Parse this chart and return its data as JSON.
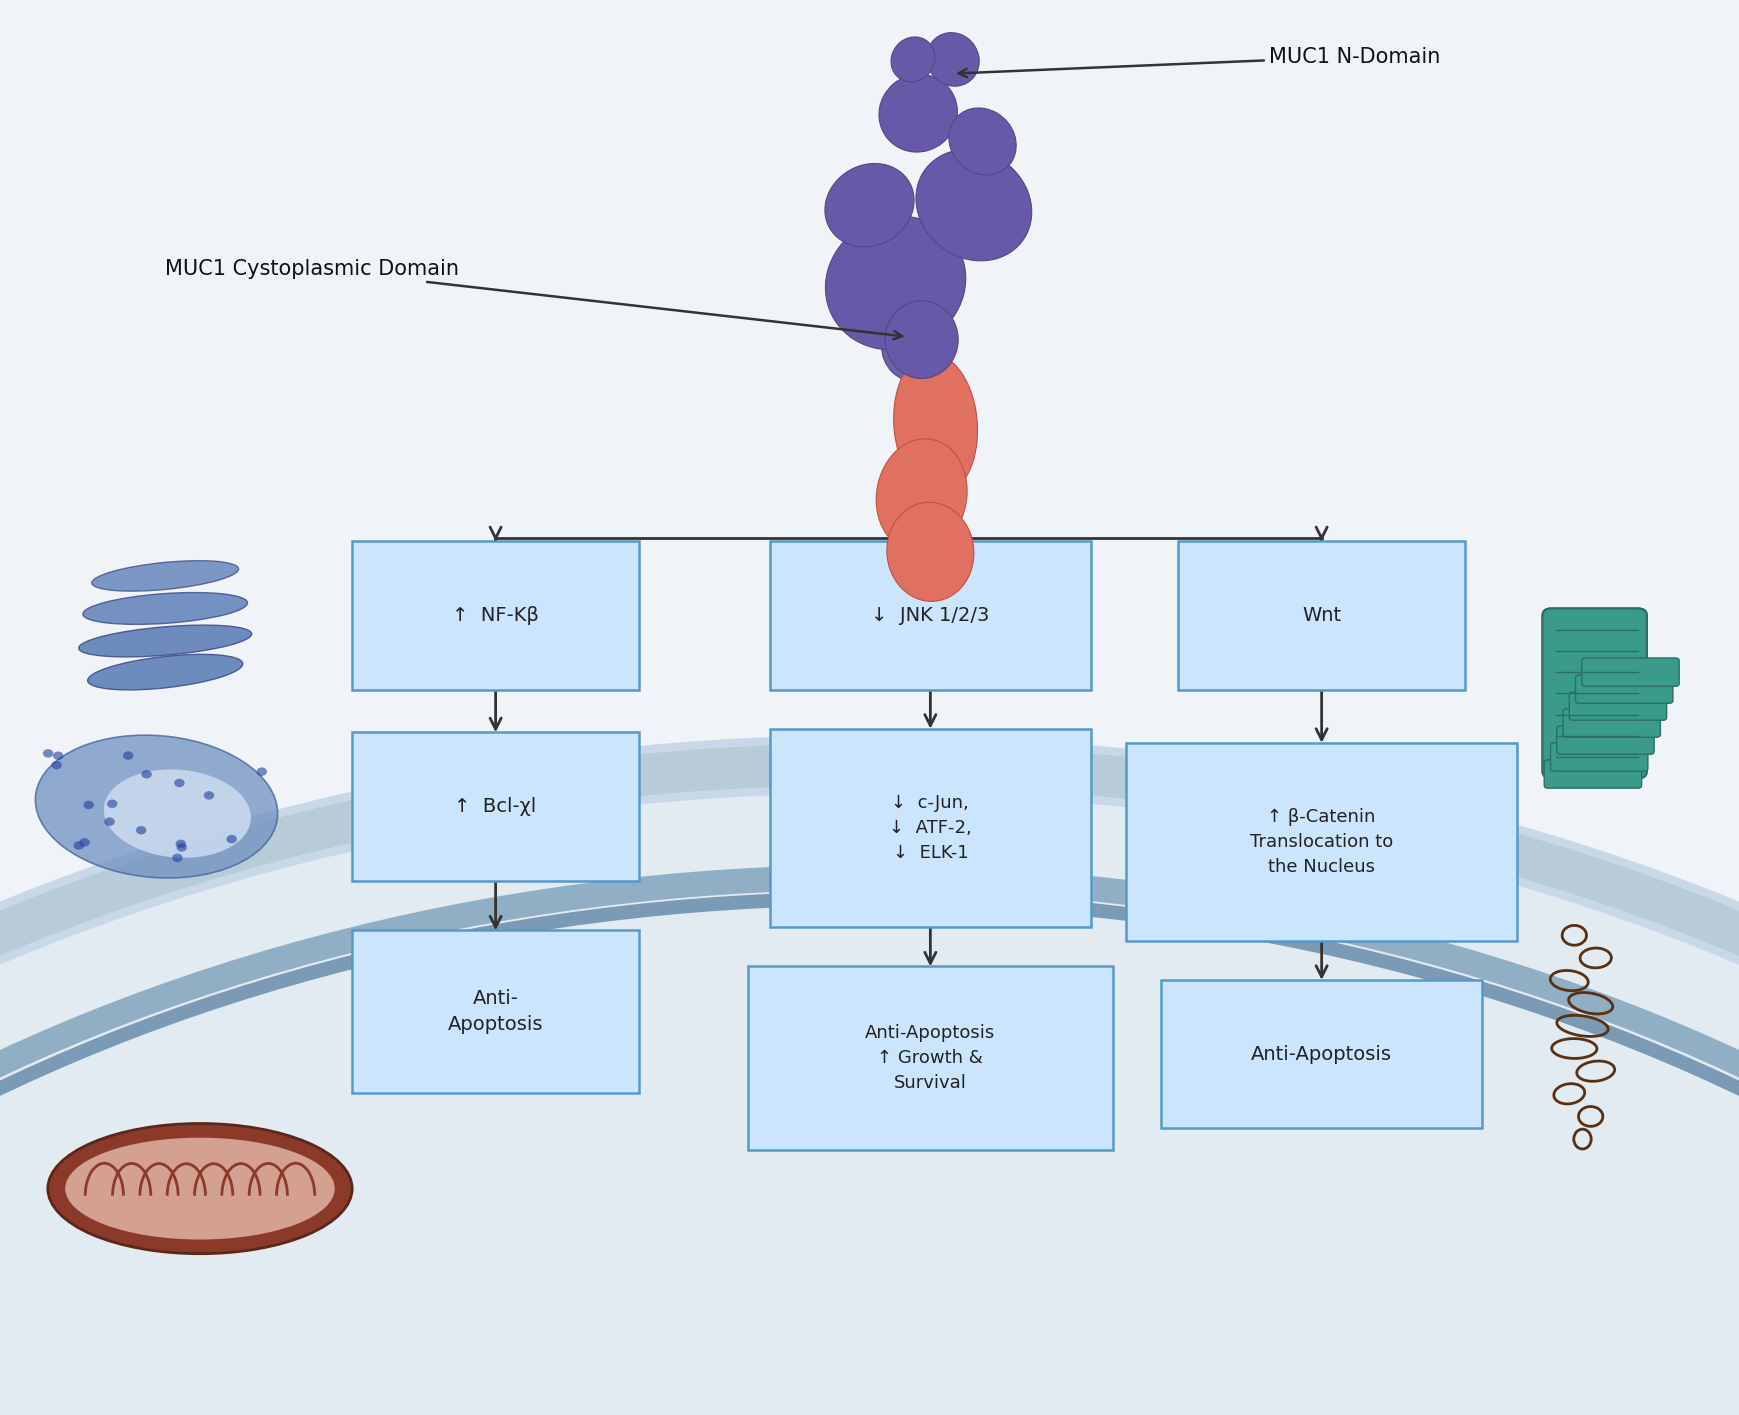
{
  "figsize": [
    17.39,
    14.15
  ],
  "dpi": 100,
  "bg_color": "#f0f4f8",
  "cell_bg": "#e2eaf2",
  "box_fill": "#cce5ff",
  "box_edge": "#5599cc",
  "box_text_color": "#222222",
  "arrow_color": "#333333",
  "label_muc1_n": "MUC1 N-Domain",
  "label_muc1_c": "MUC1 Cystoplasmic Domain",
  "box_params": {
    "nfkb": [
      0.285,
      0.565,
      0.155,
      0.095
    ],
    "bcl": [
      0.285,
      0.43,
      0.155,
      0.095
    ],
    "anti1": [
      0.285,
      0.285,
      0.155,
      0.105
    ],
    "jnk": [
      0.535,
      0.565,
      0.175,
      0.095
    ],
    "cjun": [
      0.535,
      0.415,
      0.175,
      0.13
    ],
    "anti2": [
      0.535,
      0.252,
      0.2,
      0.12
    ],
    "wnt": [
      0.76,
      0.565,
      0.155,
      0.095
    ],
    "bcat": [
      0.76,
      0.405,
      0.215,
      0.13
    ],
    "anti3": [
      0.76,
      0.255,
      0.175,
      0.095
    ]
  },
  "box_texts": {
    "nfkb": "↑  NF-Kβ",
    "bcl": "↑  Bcl-χl",
    "anti1": "Anti-\nApoptosis",
    "jnk": "↓  JNK 1/2/3",
    "cjun": "↓  c-Jun,\n↓  ATF-2,\n↓  ELK-1",
    "anti2": "Anti-Apoptosis\n↑ Growth &\nSurvival",
    "wnt": "Wnt",
    "bcat": "↑ β-Catenin\nTranslocation to\nthe Nucleus",
    "anti3": "Anti-Apoptosis"
  },
  "box_fontsize": {
    "nfkb": 14,
    "bcl": 14,
    "anti1": 14,
    "jnk": 14,
    "cjun": 13,
    "anti2": 13,
    "wnt": 14,
    "bcat": 13,
    "anti3": 14
  },
  "purple_color": "#6858a8",
  "red_color": "#e07060",
  "red_edge": "#c05040",
  "purple_edge": "#504888",
  "golgi_color": "#6080b8",
  "golgi_edge": "#405090",
  "er_color": "#7090c0",
  "er_edge": "#4060a0",
  "mito_outer": "#8b3a2a",
  "mito_inner": "#d4a090",
  "teal_color": "#3a9b8a",
  "teal_edge": "#2a7060",
  "dna_color": "#5a3010"
}
